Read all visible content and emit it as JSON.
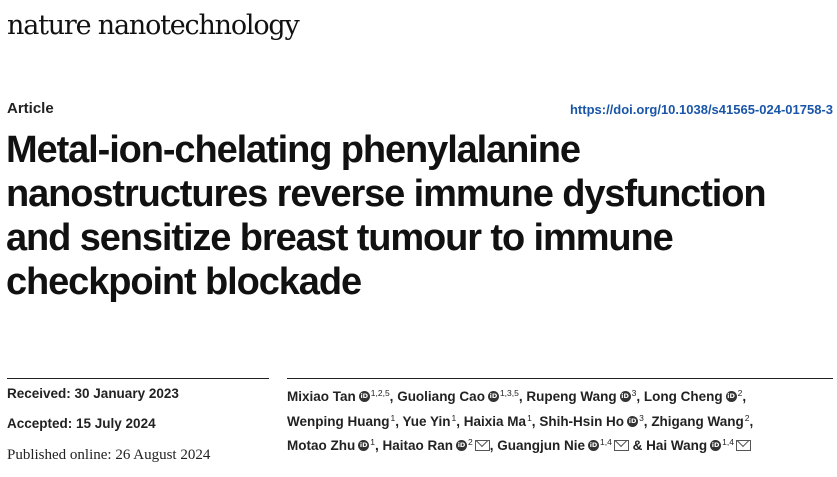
{
  "journal": "nature nanotechnology",
  "article_type": "Article",
  "doi": "https://doi.org/10.1038/s41565-024-01758-3",
  "title_lines": [
    "Metal-ion-chelating phenylalanine",
    "nanostructures reverse immune dysfunction",
    "and sensitize breast tumour to immune",
    "checkpoint blockade"
  ],
  "dates": {
    "received": "Received: 30 January 2023",
    "accepted": "Accepted: 15 July 2024",
    "published": "Published online: 26 August 2024"
  },
  "authors": [
    {
      "name": "Mixiao Tan",
      "aff": "1,2,5",
      "orcid": true,
      "mail": false
    },
    {
      "name": "Guoliang Cao",
      "aff": "1,3,5",
      "orcid": true,
      "mail": false
    },
    {
      "name": "Rupeng Wang",
      "aff": "3",
      "orcid": true,
      "mail": false
    },
    {
      "name": "Long Cheng",
      "aff": "2",
      "orcid": true,
      "mail": false
    },
    {
      "name": "Wenping Huang",
      "aff": "1",
      "orcid": false,
      "mail": false
    },
    {
      "name": "Yue Yin",
      "aff": "1",
      "orcid": false,
      "mail": false
    },
    {
      "name": "Haixia Ma",
      "aff": "1",
      "orcid": false,
      "mail": false
    },
    {
      "name": "Shih-Hsin Ho",
      "aff": "3",
      "orcid": true,
      "mail": false
    },
    {
      "name": "Zhigang Wang",
      "aff": "2",
      "orcid": false,
      "mail": false
    },
    {
      "name": "Motao Zhu",
      "aff": "1",
      "orcid": true,
      "mail": false
    },
    {
      "name": "Haitao Ran",
      "aff": "2",
      "orcid": true,
      "mail": true
    },
    {
      "name": "Guangjun Nie",
      "aff": "1,4",
      "orcid": true,
      "mail": true
    },
    {
      "name": "Hai Wang",
      "aff": "1,4",
      "orcid": true,
      "mail": true
    }
  ],
  "separators": {
    "comma": ",",
    "last_join": "&"
  },
  "colors": {
    "link": "#1a56a8",
    "text": "#111111"
  }
}
